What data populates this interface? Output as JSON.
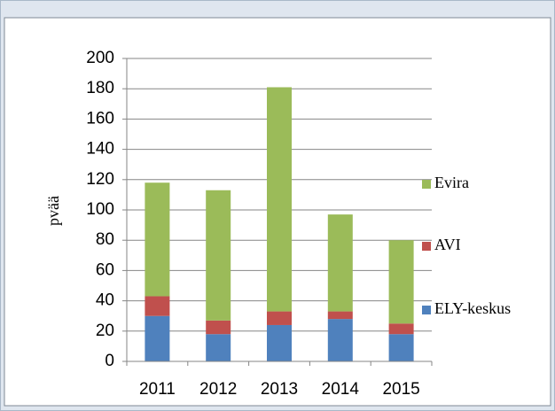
{
  "chart_data": {
    "type": "stacked_bar",
    "y_label": "pvää",
    "categories": [
      "2011",
      "2012",
      "2013",
      "2014",
      "2015"
    ],
    "series": [
      {
        "name": "ELY-keskus",
        "color": "#4f81bd",
        "values": [
          30,
          18,
          24,
          28,
          18
        ]
      },
      {
        "name": "AVI",
        "color": "#c0504d",
        "values": [
          13,
          9,
          9,
          5,
          7
        ]
      },
      {
        "name": "Evira",
        "color": "#9bbb59",
        "values": [
          75,
          86,
          148,
          64,
          55
        ]
      }
    ],
    "ylim": [
      0,
      200
    ],
    "yticks": [
      0,
      20,
      40,
      60,
      80,
      100,
      120,
      140,
      160,
      180,
      200
    ],
    "grid": true
  }
}
